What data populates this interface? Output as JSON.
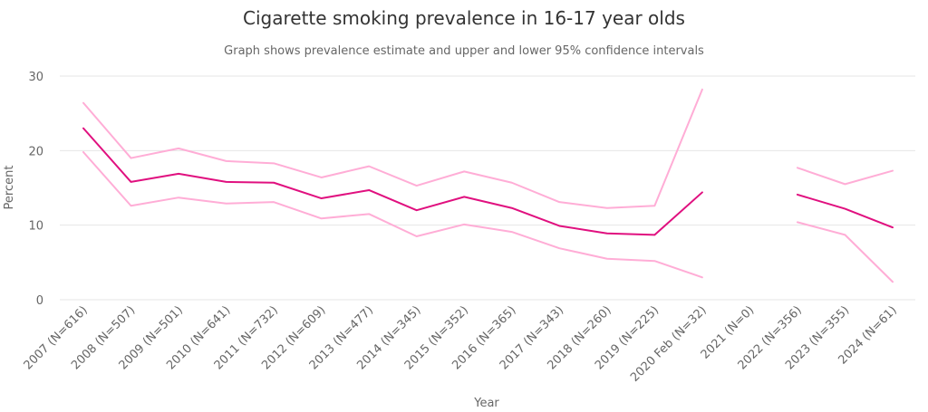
{
  "chart_data": {
    "type": "line",
    "title": "Cigarette smoking prevalence in 16-17 year olds",
    "subtitle": "Graph shows prevalence estimate and upper and lower 95% confidence intervals",
    "xlabel": "Year",
    "ylabel": "Percent",
    "ylim": [
      0,
      30
    ],
    "yticks": [
      0,
      10,
      20,
      30
    ],
    "grid": true,
    "legend": "none",
    "categories": [
      "2007 (N=616)",
      "2008 (N=507)",
      "2009 (N=501)",
      "2010 (N=641)",
      "2011 (N=732)",
      "2012 (N=609)",
      "2013 (N=477)",
      "2014 (N=345)",
      "2015 (N=352)",
      "2016 (N=365)",
      "2017 (N=343)",
      "2018 (N=260)",
      "2019 (N=225)",
      "2020 Feb (N=32)",
      "2021 (N=0)",
      "2022 (N=356)",
      "2023 (N=355)",
      "2024 (N=61)"
    ],
    "series": [
      {
        "color": "#ffadd6",
        "values": [
          26.4,
          19.0,
          20.3,
          18.6,
          18.3,
          16.4,
          17.9,
          15.3,
          17.2,
          15.7,
          13.1,
          12.3,
          12.6,
          28.2,
          null,
          17.7,
          15.5,
          17.3
        ]
      },
      {
        "color": "#e0107f",
        "values": [
          23.0,
          15.8,
          16.9,
          15.8,
          15.7,
          13.6,
          14.7,
          12.0,
          13.8,
          12.3,
          9.9,
          8.9,
          8.7,
          14.4,
          null,
          14.1,
          12.2,
          9.7
        ]
      },
      {
        "color": "#ffadd6",
        "values": [
          19.8,
          12.6,
          13.7,
          12.9,
          13.1,
          10.9,
          11.5,
          8.5,
          10.1,
          9.1,
          6.9,
          5.5,
          5.2,
          3.0,
          null,
          10.4,
          8.7,
          2.4
        ]
      }
    ]
  }
}
